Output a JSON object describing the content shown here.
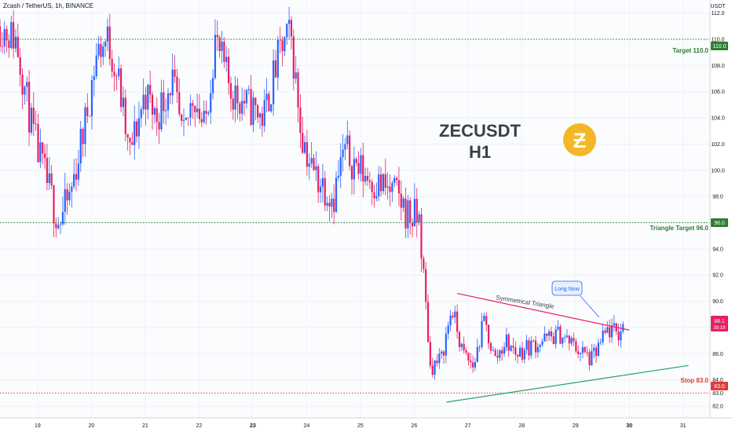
{
  "header": {
    "symbol_line": "Zcash / TetherUS, 1h, BINANCE"
  },
  "price_scale": {
    "currency": "USDT",
    "tick_labels": [
      "112.0",
      "110.0",
      "108.0",
      "106.0",
      "104.0",
      "102.0",
      "100.0",
      "98.0",
      "96.0",
      "94.0",
      "92.0",
      "90.0",
      "88.0",
      "86.0",
      "84.0",
      "83.0",
      "82.0"
    ]
  },
  "badges": {
    "target_110": "110.0",
    "target_96": "96.0",
    "stop_83": "83.0",
    "last_price": "88.1",
    "countdown": "30:19"
  },
  "annotations": {
    "symbol": "ZECUSDT",
    "timeframe": "H1",
    "coin_glyph": "Ƶ",
    "target_110_label": "Target 110.0",
    "target_96_label": "Triangle Target 96.0",
    "stop_label": "Stop 83.0",
    "pattern_label": "Symmetrical Triangle",
    "callout": "Long Now"
  },
  "time_axis": {
    "labels": [
      "19",
      "20",
      "21",
      "22",
      "23",
      "24",
      "25",
      "26",
      "27",
      "28",
      "29",
      "30",
      "31"
    ],
    "bold": [
      "23",
      "30"
    ]
  },
  "chart_data": {
    "type": "candlestick",
    "title": "Zcash / TetherUS, 1h, BINANCE",
    "ylim": [
      81.1,
      113.0
    ],
    "x_range_days": [
      18.3,
      31.5
    ],
    "levels": [
      {
        "name": "Target 110.0",
        "value": 110.0,
        "color": "#2e7d32",
        "style": "dotted"
      },
      {
        "name": "Triangle Target 96.0",
        "value": 96.0,
        "color": "#2e7d32",
        "style": "dotted"
      },
      {
        "name": "Stop 83.0",
        "value": 83.0,
        "color": "#e53935",
        "style": "dotted"
      }
    ],
    "trendlines": [
      {
        "name": "Symmetrical Triangle upper",
        "from": [
          26.8,
          90.6
        ],
        "to": [
          30.0,
          87.8
        ],
        "color": "#e91e63"
      },
      {
        "name": "Symmetrical Triangle lower",
        "from": [
          26.6,
          82.3
        ],
        "to": [
          31.1,
          85.1
        ],
        "color": "#26a269"
      }
    ],
    "last_price": 88.1,
    "colors": {
      "up": "#2962ff",
      "down": "#e91e63"
    },
    "path_days": [
      18.3,
      18.6,
      18.9,
      19.1,
      19.4,
      19.6,
      19.9,
      20.1,
      20.3,
      20.5,
      20.7,
      21.0,
      21.2,
      21.5,
      21.7,
      21.9,
      22.1,
      22.3,
      22.6,
      22.9,
      23.2,
      23.5,
      23.7,
      23.9,
      24.1,
      24.3,
      24.5,
      24.7,
      25.0,
      25.3,
      25.5,
      25.7,
      25.9,
      26.1,
      26.3,
      26.5,
      26.7,
      26.9,
      27.1,
      27.3,
      27.5,
      27.7,
      27.9,
      28.1,
      28.4,
      28.7,
      29.0,
      29.3,
      29.6,
      29.8,
      29.9
    ],
    "path_prices": [
      111.0,
      110.0,
      103.0,
      100.0,
      96.0,
      98.0,
      104.0,
      109.0,
      110.0,
      107.0,
      101.0,
      106.0,
      104.0,
      107.0,
      102.0,
      106.0,
      103.0,
      110.0,
      106.0,
      105.0,
      104.0,
      109.0,
      110.5,
      103.0,
      100.0,
      99.0,
      98.0,
      101.5,
      100.0,
      99.0,
      98.5,
      98.0,
      96.5,
      96.2,
      85.0,
      85.5,
      89.5,
      86.0,
      85.0,
      88.5,
      85.5,
      87.0,
      86.0,
      86.5,
      87.0,
      87.5,
      86.5,
      85.5,
      87.8,
      87.5,
      88.1
    ]
  }
}
